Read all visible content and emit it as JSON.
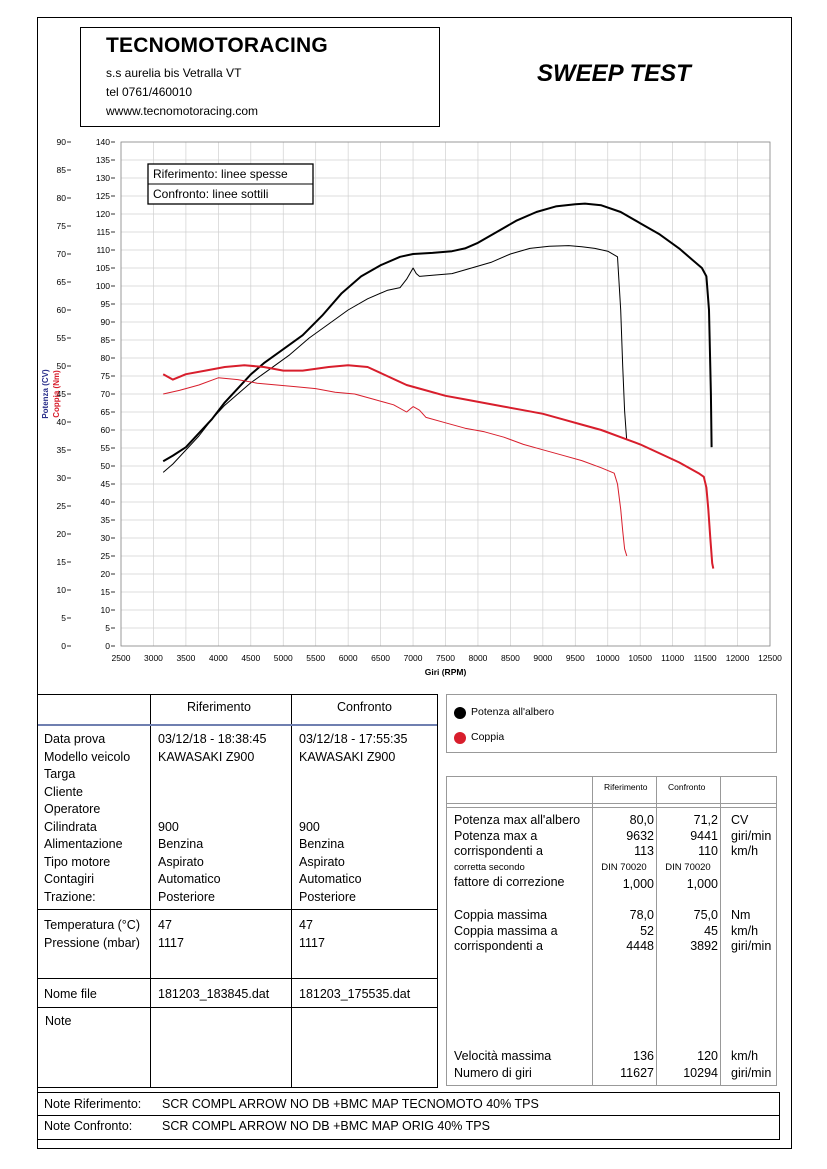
{
  "header": {
    "company": "TECNOMOTORACING",
    "address": "s.s aurelia bis  Vetralla  VT",
    "phone": "tel 0761/460010",
    "website": "wwww.tecnomotoracing.com",
    "report_title": "SWEEP TEST"
  },
  "chart_legend": {
    "reference": "Riferimento: linee spesse",
    "comparison": "Confronto: linee sottili"
  },
  "chart_data": {
    "type": "line",
    "xlabel": "Giri (RPM)",
    "ylabel_power": "Potenza (CV)",
    "ylabel_torque": "Coppia (Nm)",
    "xlim": [
      2500,
      12500
    ],
    "ylim_power": [
      0,
      90
    ],
    "ylim_torque": [
      0,
      140
    ],
    "x_ticks": [
      2500,
      3000,
      3500,
      4000,
      4500,
      5000,
      5500,
      6000,
      6500,
      7000,
      7500,
      8000,
      8500,
      9000,
      9500,
      10000,
      10500,
      11000,
      11500,
      12000,
      12500
    ],
    "power_ticks": [
      0,
      5,
      10,
      15,
      20,
      25,
      30,
      35,
      40,
      45,
      50,
      55,
      60,
      65,
      70,
      75,
      80,
      85,
      90
    ],
    "torque_ticks": [
      0,
      5,
      10,
      15,
      20,
      25,
      30,
      35,
      40,
      45,
      50,
      55,
      60,
      65,
      70,
      75,
      80,
      85,
      90,
      95,
      100,
      105,
      110,
      115,
      120,
      125,
      130,
      135,
      140
    ],
    "series": [
      {
        "name": "Potenza all'albero",
        "run": "Riferimento",
        "axis": "power",
        "color": "#000000",
        "width": 2,
        "x": [
          3150,
          3300,
          3500,
          3700,
          3900,
          4100,
          4300,
          4500,
          4700,
          5000,
          5300,
          5600,
          5900,
          6200,
          6500,
          6800,
          7000,
          7300,
          7600,
          7800,
          8000,
          8300,
          8600,
          8900,
          9200,
          9500,
          9650,
          9900,
          10200,
          10500,
          10800,
          11100,
          11300,
          11450,
          11520,
          11560,
          11590,
          11600
        ],
        "y": [
          33.0,
          34.0,
          35.5,
          38.0,
          40.5,
          43.5,
          46.0,
          48.5,
          50.5,
          53.0,
          55.5,
          59.0,
          63.0,
          66.0,
          68.0,
          69.5,
          70.0,
          70.2,
          70.5,
          71.0,
          72.0,
          74.0,
          76.0,
          77.5,
          78.5,
          78.9,
          79.0,
          78.7,
          77.5,
          75.5,
          73.5,
          71.0,
          69.0,
          67.5,
          66.0,
          60.0,
          45.0,
          35.5
        ]
      },
      {
        "name": "Potenza all'albero",
        "run": "Confronto",
        "axis": "power",
        "color": "#000000",
        "width": 1,
        "x": [
          3150,
          3300,
          3500,
          3700,
          3900,
          4100,
          4300,
          4500,
          4800,
          5100,
          5400,
          5700,
          6000,
          6300,
          6600,
          6800,
          6900,
          7000,
          7050,
          7100,
          7300,
          7600,
          7900,
          8200,
          8500,
          8800,
          9100,
          9400,
          9600,
          9800,
          10000,
          10150,
          10200,
          10230,
          10260,
          10290
        ],
        "y": [
          31.0,
          32.5,
          35.0,
          37.5,
          40.5,
          43.0,
          45.0,
          47.0,
          49.5,
          52.0,
          55.0,
          57.5,
          60.0,
          62.0,
          63.5,
          64.0,
          65.5,
          67.5,
          66.5,
          66.0,
          66.2,
          66.5,
          67.5,
          68.5,
          70.0,
          71.0,
          71.4,
          71.5,
          71.3,
          71.0,
          70.5,
          69.5,
          60.0,
          50.0,
          42.0,
          37.0
        ]
      },
      {
        "name": "Coppia",
        "run": "Riferimento",
        "axis": "torque",
        "color": "#d81e2c",
        "width": 2,
        "x": [
          3150,
          3300,
          3500,
          3800,
          4100,
          4400,
          4700,
          5000,
          5300,
          5700,
          6000,
          6300,
          6600,
          6900,
          7200,
          7500,
          7800,
          8100,
          8400,
          8700,
          9000,
          9300,
          9600,
          9900,
          10200,
          10500,
          10800,
          11100,
          11400,
          11480,
          11520,
          11550,
          11580,
          11610,
          11627
        ],
        "y": [
          75.5,
          74.0,
          75.5,
          76.5,
          77.5,
          78.0,
          77.5,
          76.5,
          76.5,
          77.5,
          78.0,
          77.5,
          75.0,
          72.5,
          71.0,
          69.5,
          68.5,
          67.5,
          66.5,
          65.5,
          64.5,
          63.0,
          61.5,
          60.0,
          58.0,
          56.0,
          53.5,
          51.0,
          48.0,
          47.0,
          44.0,
          38.0,
          30.0,
          23.0,
          21.5
        ]
      },
      {
        "name": "Coppia",
        "run": "Confronto",
        "axis": "torque",
        "color": "#d81e2c",
        "width": 1,
        "x": [
          3150,
          3400,
          3700,
          4000,
          4300,
          4600,
          4900,
          5200,
          5500,
          5800,
          6100,
          6400,
          6700,
          6900,
          7000,
          7100,
          7200,
          7500,
          7800,
          8100,
          8400,
          8700,
          9000,
          9300,
          9600,
          9900,
          10100,
          10150,
          10200,
          10230,
          10260,
          10294
        ],
        "y": [
          70.0,
          71.0,
          72.5,
          74.5,
          74.0,
          73.0,
          72.5,
          72.0,
          71.5,
          70.5,
          70.0,
          68.5,
          67.0,
          65.0,
          66.5,
          65.5,
          63.5,
          62.0,
          60.5,
          59.5,
          58.0,
          56.0,
          54.5,
          53.0,
          51.5,
          49.5,
          48.0,
          45.0,
          38.0,
          32.0,
          27.0,
          25.0
        ]
      }
    ]
  },
  "left_table": {
    "col_ref": "Riferimento",
    "col_cmp": "Confronto",
    "labels1": [
      "Data prova",
      "Modello veicolo",
      "Targa",
      "Cliente",
      "Operatore",
      "Cilindrata",
      "Alimentazione",
      "Tipo motore",
      "Contagiri",
      "Trazione:"
    ],
    "ref1": [
      "03/12/18 - 18:38:45",
      "KAWASAKI Z900",
      "",
      "",
      "",
      "900",
      "Benzina",
      "Aspirato",
      "Automatico",
      "Posteriore"
    ],
    "cmp1": [
      "03/12/18 - 17:55:35",
      "KAWASAKI Z900",
      "",
      "",
      "",
      "900",
      "Benzina",
      "Aspirato",
      "Automatico",
      "Posteriore"
    ],
    "labels2": [
      "Temperatura (°C)",
      "Pressione (mbar)"
    ],
    "ref2": [
      "47",
      "1117"
    ],
    "cmp2": [
      "47",
      "1117"
    ],
    "file_label": "Nome file",
    "file_ref": "181203_183845.dat",
    "file_cmp": "181203_175535.dat",
    "note_label": "Note"
  },
  "legend": {
    "power": "Potenza all'albero",
    "torque": "Coppia",
    "power_color": "#000000",
    "torque_color": "#d81e2c"
  },
  "results": {
    "col_ref": "Riferimento",
    "col_cmp": "Confronto",
    "rows1": [
      {
        "label": "Potenza max all'albero",
        "ref": "80,0",
        "cmp": "71,2",
        "unit": "CV"
      },
      {
        "label": "Potenza max a",
        "ref": "9632",
        "cmp": "9441",
        "unit": "giri/min"
      },
      {
        "label": "corrispondenti a",
        "ref": "113",
        "cmp": "110",
        "unit": "km/h"
      }
    ],
    "corr_label": "corretta secondo",
    "corr_ref": "DIN 70020",
    "corr_cmp": "DIN 70020",
    "factor_label": "fattore di correzione",
    "factor_ref": "1,000",
    "factor_cmp": "1,000",
    "rows2": [
      {
        "label": "Coppia massima",
        "ref": "78,0",
        "cmp": "75,0",
        "unit": "Nm"
      },
      {
        "label": "Coppia massima a",
        "ref": "52",
        "cmp": "45",
        "unit": "km/h"
      },
      {
        "label": "corrispondenti a",
        "ref": "4448",
        "cmp": "3892",
        "unit": "giri/min"
      }
    ],
    "rows3": [
      {
        "label": "Velocità massima",
        "ref": "136",
        "cmp": "120",
        "unit": "km/h"
      },
      {
        "label": "Numero di giri",
        "ref": "11627",
        "cmp": "10294",
        "unit": "giri/min"
      }
    ]
  },
  "notes": {
    "ref_label": "Note Riferimento:",
    "ref_text": "SCR COMPL ARROW NO DB +BMC MAP TECNOMOTO 40% TPS",
    "cmp_label": "Note Confronto:",
    "cmp_text": "SCR COMPL ARROW NO DB +BMC MAP ORIG 40% TPS"
  }
}
